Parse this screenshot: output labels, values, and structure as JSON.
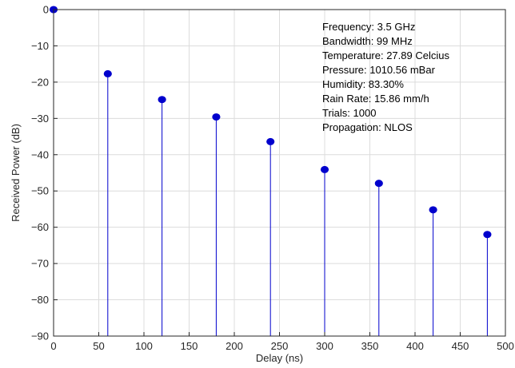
{
  "chart_data": {
    "type": "stem",
    "xlabel": "Delay (ns)",
    "ylabel": "Received Power (dB)",
    "xlim": [
      0,
      500
    ],
    "ylim": [
      -90,
      0
    ],
    "xticks": [
      0,
      50,
      100,
      150,
      200,
      250,
      300,
      350,
      400,
      450,
      500
    ],
    "yticks": [
      0,
      -10,
      -20,
      -30,
      -40,
      -50,
      -60,
      -70,
      -80,
      -90
    ],
    "grid": true,
    "baseline": -90,
    "x": [
      0,
      60,
      120,
      180,
      240,
      300,
      360,
      420,
      480
    ],
    "y": [
      0,
      -17.7,
      -24.8,
      -29.6,
      -36.4,
      -44.1,
      -47.9,
      -55.2,
      -62.0
    ],
    "color": "#0000cd",
    "annotations": [
      "Frequency: 3.5 GHz",
      "Bandwidth: 99 MHz",
      "Temperature: 27.89 Celcius",
      "Pressure: 1010.56 mBar",
      "Humidity: 83.30%",
      "Rain Rate: 15.86 mm/h",
      "Trials: 1000",
      "Propagation: NLOS"
    ]
  }
}
